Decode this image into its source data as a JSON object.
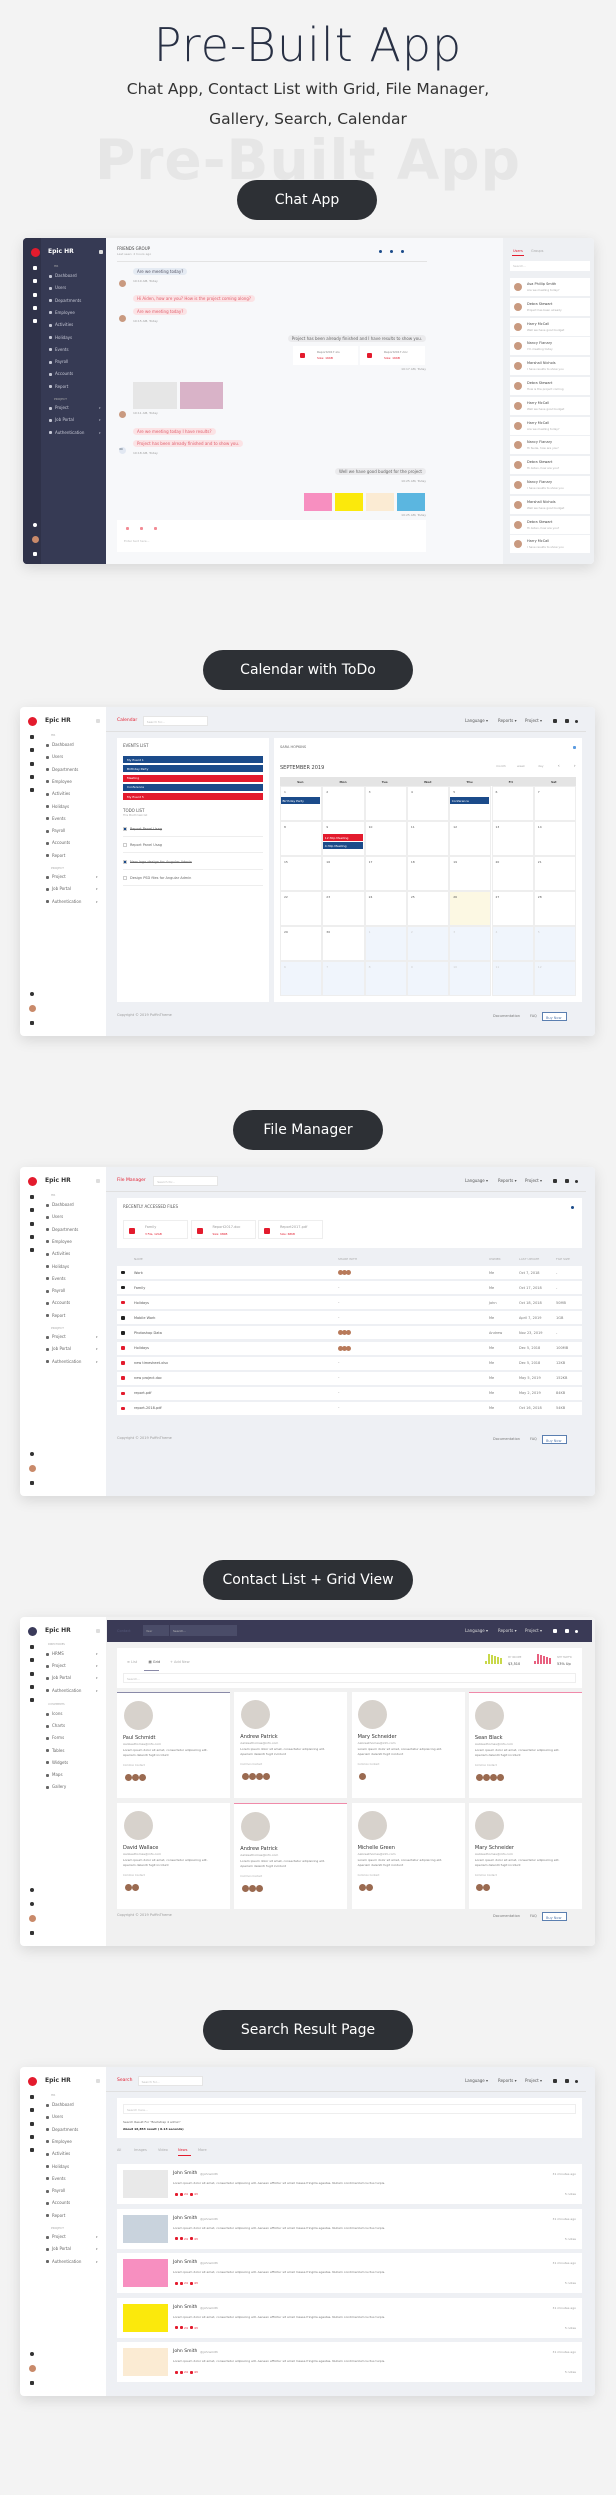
{
  "hero": {
    "title": "Pre-Built App",
    "subtitle_line1": "Chat App, Contact List with Grid, File Manager,",
    "subtitle_line2": "Gallery, Search, Calendar",
    "watermark": "Pre-Built App"
  },
  "sections": {
    "chat": "Chat App",
    "calendar": "Calendar with ToDo",
    "file_manager": "File Manager",
    "contact": "Contact List + Grid View",
    "search": "Search Result Page"
  },
  "colors": {
    "accent": "#e31b2d",
    "navy": "#1b4b8a",
    "dark_sidebar": "#363a54",
    "pill": "#2d3035"
  },
  "sidebar": {
    "app_name": "Epic HR",
    "section_hr": "HR",
    "hr_items": [
      "Dashboard",
      "Users",
      "Departments",
      "Employee",
      "Activities",
      "Holidays",
      "Events",
      "Payroll",
      "Accounts",
      "Report"
    ],
    "section_project": "PROJECT",
    "project_items": [
      "Project",
      "Job Portal",
      "Authentication"
    ]
  },
  "contact_sidebar": {
    "section_directories": "DIRECTORIES",
    "directory_items": [
      "HRMS",
      "Project",
      "Job Portal",
      "Authentication"
    ],
    "section_ui": "UI ELEMENTS",
    "ui_items": [
      "Icons",
      "Charts",
      "Forms",
      "Tables",
      "Widgets",
      "Maps",
      "Gallery"
    ]
  },
  "topnav": {
    "language": "Language ▾",
    "reports": "Reports ▾",
    "project": "Project ▾",
    "search_placeholder": "Search for..."
  },
  "footer": {
    "copyright": "Copyright © 2019 PuffinTheme",
    "documentation": "Documentation",
    "faq": "FAQ",
    "buy_now": "Buy Now"
  },
  "chat": {
    "group_name": "FRIENDS GROUP",
    "last_seen": "Last seen: 2 hours ago",
    "messages": [
      {
        "text": "Are we meeting today?",
        "side": "left",
        "style": "blue"
      },
      {
        "text": "10:10 AM, Today",
        "side": "left",
        "style": "time"
      },
      {
        "text": "Hi Aiden, how are you? How is the project coming along?",
        "side": "left",
        "style": "pink"
      },
      {
        "text": "Are we meeting today?",
        "side": "left",
        "style": "pink"
      },
      {
        "text": "10:15 AM, Today",
        "side": "left",
        "style": "time"
      },
      {
        "text": "Project has been already finished and I have results to show you.",
        "side": "right",
        "style": "gray"
      },
      {
        "text": "10:17 AM, Today",
        "side": "right",
        "style": "time"
      },
      {
        "text": "10:11 AM, Today",
        "side": "left",
        "style": "time"
      },
      {
        "text": "Are we meeting today I have results?",
        "side": "left",
        "style": "pink"
      },
      {
        "text": "Project has been already finished and to show you.",
        "side": "left",
        "style": "pink"
      },
      {
        "text": "10:18 AM, Today",
        "side": "left",
        "style": "time"
      },
      {
        "text": "Well we have good budget for the project",
        "side": "right",
        "style": "gray"
      },
      {
        "text": "10:25 AM, Today",
        "side": "right",
        "style": "time"
      },
      {
        "text": "10:25 AM, Today",
        "side": "right",
        "style": "time"
      }
    ],
    "files": [
      {
        "name": "Report2017.xls",
        "size": "Size: 16KB"
      },
      {
        "name": "Report2017.doc",
        "size": "Size: 16KB"
      }
    ],
    "avatar_initials": "NC",
    "input_placeholder": "Enter text here...",
    "tabs": [
      "Users",
      "Groups"
    ],
    "search_placeholder": "Search...",
    "users": [
      {
        "name": "Ava Phillip Smith",
        "msg": "Are we meeting today?"
      },
      {
        "name": "Debra Stewart",
        "msg": "Project has been already"
      },
      {
        "name": "Harry McCall",
        "msg": "Well we have good budget"
      },
      {
        "name": "Nancy Flanary",
        "msg": "I'm meeting today"
      },
      {
        "name": "Marshall Nichols",
        "msg": "I have results to show you"
      },
      {
        "name": "Debra Stewart",
        "msg": "How is the project coming"
      },
      {
        "name": "Harry McCall",
        "msg": "Well we have good budget"
      },
      {
        "name": "Harry McCall",
        "msg": "Are we meeting today?"
      },
      {
        "name": "Nancy Flanary",
        "msg": "Hi Suzie, how are you?"
      },
      {
        "name": "Debra Stewart",
        "msg": "Hi Aiden, how are you?"
      },
      {
        "name": "Nancy Flanary",
        "msg": "I have results to show you"
      },
      {
        "name": "Marshall Nichols",
        "msg": "Well we have good budget"
      },
      {
        "name": "Debra Stewart",
        "msg": "Hi Aiden, how are you?"
      },
      {
        "name": "Harry McCall",
        "msg": "I have results to show you"
      }
    ]
  },
  "calendar": {
    "page_title": "Calendar",
    "events_title": "EVENTS LIST",
    "events": [
      {
        "label": "My Event 1",
        "color": "#1b4b8a"
      },
      {
        "label": "Birthday Party",
        "color": "#1b4b8a"
      },
      {
        "label": "Meeting",
        "color": "#e31b2d"
      },
      {
        "label": "Conference",
        "color": "#1b4b8a"
      },
      {
        "label": "My Event 5",
        "color": "#e31b2d"
      }
    ],
    "todo_title": "TODO LIST",
    "todo_subtitle": "This Month task list",
    "todos": [
      {
        "label": "Report Panel Usag",
        "done": true
      },
      {
        "label": "Report Panel Usag",
        "done": false
      },
      {
        "label": "New logo design for Angular Admin",
        "done": true
      },
      {
        "label": "Design PSD files for Angular Admin",
        "done": false
      }
    ],
    "owner": "SARA HOPKINS",
    "month": "SEPTEMBER 2019",
    "views": [
      "month",
      "week",
      "day"
    ],
    "prev": "‹",
    "next": "›",
    "weekdays": [
      "Sun",
      "Mon",
      "Tue",
      "Wed",
      "Thu",
      "Fri",
      "Sat"
    ],
    "days": [
      "1",
      "2",
      "3",
      "4",
      "5",
      "6",
      "7",
      "8",
      "9",
      "10",
      "11",
      "12",
      "13",
      "14",
      "15",
      "16",
      "17",
      "18",
      "19",
      "20",
      "21",
      "22",
      "23",
      "24",
      "25",
      "26",
      "27",
      "28",
      "29",
      "30",
      "1",
      "2",
      "3",
      "4",
      "5",
      "6",
      "7",
      "8",
      "9",
      "10",
      "11",
      "12"
    ],
    "today_index": 25,
    "current_month_days": 30,
    "cell_events": [
      {
        "cell": 0,
        "label": "Birthday Party",
        "color": "#1b4b8a"
      },
      {
        "cell": 4,
        "label": "Conference",
        "color": "#1b4b8a"
      },
      {
        "cell": 8,
        "label": "12:30p Meeting",
        "color": "#e31b2d"
      },
      {
        "cell": 8,
        "label": "4:30p Meeting",
        "color": "#1b4b8a"
      }
    ]
  },
  "file_manager": {
    "page_title": "File Manager",
    "recent_title": "RECENTLY ACCESSED FILES",
    "recent": [
      {
        "name": "Family",
        "meta": "3 File, 12GB",
        "icon": "folder-icon"
      },
      {
        "name": "Report2017.doc",
        "meta": "Size: 68KB",
        "icon": "doc-icon"
      },
      {
        "name": "Report2017.pdf",
        "meta": "Size: 68KB",
        "icon": "pdf-icon"
      }
    ],
    "columns": [
      "NAME",
      "SHARE WITH",
      "OWNER",
      "LAST UPDATE",
      "FILE SIZE"
    ],
    "rows": [
      {
        "name": "Work",
        "share": "avatars",
        "owner": "Me",
        "updated": "Oct 7, 2018",
        "size": "-",
        "icon": "folder-icon",
        "red": false
      },
      {
        "name": "Family",
        "share": "-",
        "owner": "Me",
        "updated": "Oct 17, 2018",
        "size": "-",
        "icon": "folder-icon",
        "red": false
      },
      {
        "name": "Holidays",
        "share": "-",
        "owner": "John",
        "updated": "Oct 18, 2018",
        "size": "50MB",
        "icon": "folder-icon",
        "red": true
      },
      {
        "name": "Mobile Work",
        "share": "-",
        "owner": "Me",
        "updated": "April 7, 2019",
        "size": "1GB",
        "icon": "folder-icon",
        "red": false
      },
      {
        "name": "Photoshop Data",
        "share": "avatars",
        "owner": "Andrew",
        "updated": "Nov 23, 2019",
        "size": "-",
        "icon": "folder-icon",
        "red": false
      },
      {
        "name": "Holidays",
        "share": "avatars",
        "owner": "Me",
        "updated": "Dec 5, 2018",
        "size": "100MB",
        "icon": "folder-icon",
        "red": true
      },
      {
        "name": "new timesheet.xlsx",
        "share": "-",
        "owner": "Me",
        "updated": "Dec 5, 2018",
        "size": "12KB",
        "icon": "file-icon",
        "red": true
      },
      {
        "name": "new project.doc",
        "share": "-",
        "owner": "Me",
        "updated": "May 5, 2019",
        "size": "152KB",
        "icon": "file-icon",
        "red": true
      },
      {
        "name": "report.pdf",
        "share": "-",
        "owner": "Me",
        "updated": "May 2, 2019",
        "size": "84KB",
        "icon": "pdf-icon",
        "red": true
      },
      {
        "name": "report-2018.pdf",
        "share": "-",
        "owner": "Me",
        "updated": "Oct 16, 2018",
        "size": "54KB",
        "icon": "pdf-icon",
        "red": true
      }
    ]
  },
  "contact": {
    "page_title": "Contact",
    "year_select": "Year",
    "search_placeholder": "Search...",
    "tabs": [
      "List",
      "Grid",
      "Add New"
    ],
    "active_tab": "Grid",
    "filter_placeholder": "Search...",
    "stats": [
      {
        "label": "MY INCOME",
        "value": "$3,510",
        "color": "#c8d84a"
      },
      {
        "label": "SITE TRAFFIC",
        "value": "53% Up",
        "color": "#e8607f"
      }
    ],
    "common_label": "Common Contact",
    "cards": [
      {
        "name": "Paul Schmidt",
        "email": "Aalizeethomas@info.com",
        "bio": "Lorem ipsum dolor sit amet, consectetur adipisicing elit. Aperiam deleniti fugit incidunt",
        "contacts": 3,
        "accent": "#8a8aa8"
      },
      {
        "name": "Andrew Patrick",
        "email": "Aalizeethomas@info.com",
        "bio": "Lorem ipsum dolor sit amet, consectetur adipisicing elit. Aperiam deleniti fugit incidunt",
        "contacts": 4,
        "accent": ""
      },
      {
        "name": "Mary Schneider",
        "email": "Aalizeethomas@info.com",
        "bio": "Lorem ipsum dolor sit amet, consectetur adipisicing elit. Aperiam deleniti fugit incidunt",
        "contacts": 1,
        "accent": ""
      },
      {
        "name": "Sean Black",
        "email": "Aalizeethomas@info.com",
        "bio": "Lorem ipsum dolor sit amet, consectetur adipisicing elit. Aperiam deleniti fugit incidunt",
        "contacts": 4,
        "accent": "#f08aaa"
      },
      {
        "name": "David Wallace",
        "email": "Aalizeethomas@info.com",
        "bio": "Lorem ipsum dolor sit amet, consectetur adipisicing elit. Aperiam deleniti fugit incidunt",
        "contacts": 2,
        "accent": ""
      },
      {
        "name": "Andrew Patrick",
        "email": "Aalizeethomas@info.com",
        "bio": "Lorem ipsum dolor sit amet, consectetur adipisicing elit. Aperiam deleniti fugit incidunt",
        "contacts": 3,
        "accent": "#f08aaa"
      },
      {
        "name": "Michelle Green",
        "email": "Aalizeethomas@info.com",
        "bio": "Lorem ipsum dolor sit amet, consectetur adipisicing elit. Aperiam deleniti fugit incidunt",
        "contacts": 2,
        "accent": ""
      },
      {
        "name": "Mary Schneider",
        "email": "Aalizeethomas@info.com",
        "bio": "Lorem ipsum dolor sit amet, consectetur adipisicing elit. Aperiam deleniti fugit incidunt",
        "contacts": 2,
        "accent": ""
      }
    ]
  },
  "search": {
    "page_title": "Search",
    "input_placeholder": "Search here...",
    "result_for": "Search Result For \"Bootstrap 4 admin\"",
    "result_count": "About 16,853 result ( 0.13 seconds)",
    "tabs": [
      "All",
      "Images",
      "Video",
      "News",
      "More"
    ],
    "active_tab": "News",
    "results": [
      {
        "name": "John Smith",
        "handle": "@johnsmith",
        "text": "Lorem ipsum dolor sit amet, consectetur adipiscing elit. Aenean efficitur sit amet massa fringilla egestas. Nullam condimentum luctus turpis.",
        "likes": "24",
        "hearts": "43",
        "time": "31 minutes ago",
        "notes": "5 notes",
        "thumb": "#e9e9e9"
      },
      {
        "name": "John Smith",
        "handle": "@johnsmith",
        "text": "Lorem ipsum dolor sit amet, consectetur adipiscing elit. Aenean efficitur sit amet massa fringilla egestas. Nullam condimentum luctus turpis.",
        "likes": "24",
        "hearts": "43",
        "time": "31 minutes ago",
        "notes": "5 notes",
        "thumb": "#c9d3dd"
      },
      {
        "name": "John Smith",
        "handle": "@johnsmith",
        "text": "Lorem ipsum dolor sit amet, consectetur adipiscing elit. Aenean efficitur sit amet massa fringilla egestas. Nullam condimentum luctus turpis.",
        "likes": "24",
        "hearts": "43",
        "time": "31 minutes ago",
        "notes": "5 notes",
        "thumb": "#f78fc0"
      },
      {
        "name": "John Smith",
        "handle": "@johnsmith",
        "text": "Lorem ipsum dolor sit amet, consectetur adipiscing elit. Aenean efficitur sit amet massa fringilla egestas. Nullam condimentum luctus turpis.",
        "likes": "24",
        "hearts": "43",
        "time": "31 minutes ago",
        "notes": "5 notes",
        "thumb": "#fbe90c"
      },
      {
        "name": "John Smith",
        "handle": "@johnsmith",
        "text": "Lorem ipsum dolor sit amet, consectetur adipiscing elit. Aenean efficitur sit amet massa fringilla egestas. Nullam condimentum luctus turpis.",
        "likes": "24",
        "hearts": "43",
        "time": "31 minutes ago",
        "notes": "5 notes",
        "thumb": "#fbebd3"
      }
    ]
  }
}
